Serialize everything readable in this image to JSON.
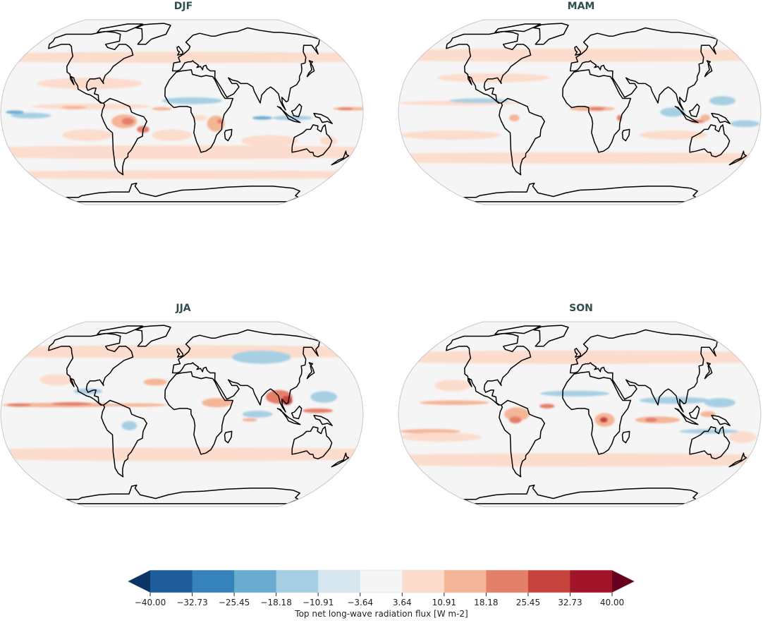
{
  "figure": {
    "colorbar_label": "Top net long-wave radiation flux [W m-2]",
    "colorbar_ticks": [
      "−40.00",
      "−32.73",
      "−25.45",
      "−18.18",
      "−10.91",
      "−3.64",
      "3.64",
      "10.91",
      "18.18",
      "25.45",
      "32.73",
      "40.00"
    ],
    "colorbar_colors": [
      "#0a3366",
      "#1f5c9c",
      "#3682bd",
      "#69acd0",
      "#a7cfe3",
      "#d6e7f0",
      "#f5f5f5",
      "#fcdccc",
      "#f5b597",
      "#e47f6a",
      "#c7433e",
      "#a1142a",
      "#67001f"
    ],
    "panels": [
      {
        "title": "DJF"
      },
      {
        "title": "MAM"
      },
      {
        "title": "JJA"
      },
      {
        "title": "SON"
      }
    ]
  },
  "chart_data": {
    "type": "heatmap",
    "title": "",
    "projection": "Robinson (global map)",
    "panels": [
      "DJF",
      "MAM",
      "JJA",
      "SON"
    ],
    "layout": "2x2 grid",
    "colorbar": {
      "label": "Top net long-wave radiation flux [W m-2]",
      "orientation": "horizontal",
      "position": "bottom",
      "extend": "both",
      "vmin": -40.0,
      "vmax": 40.0,
      "levels": [
        -40.0,
        -32.73,
        -25.45,
        -18.18,
        -10.91,
        -3.64,
        3.64,
        10.91,
        18.18,
        25.45,
        32.73,
        40.0
      ],
      "colormap": "RdBu_r"
    },
    "description": {
      "DJF": "Mostly near-zero to +3.64..10.91 anomalies; positive maxima (18-25) over Amazon, southern Africa, Maritime Continent; negative (-10 to -25) over equatorial Pacific and Indian Ocean",
      "MAM": "Positive band along equatorial Atlantic / central Africa (18-32); negative over Indian Ocean and western Pacific",
      "JJA": "Strong positive ITCZ band across Pacific and Atlantic (~10-25); maximum over Bay of Bengal/SE Asia (~25-32); negative over Eurasia and western Pacific",
      "SON": "Positive maxima over northern South America, central Africa and Indian Ocean (18-32); negative over Indian Ocean north and west Pacific"
    }
  }
}
